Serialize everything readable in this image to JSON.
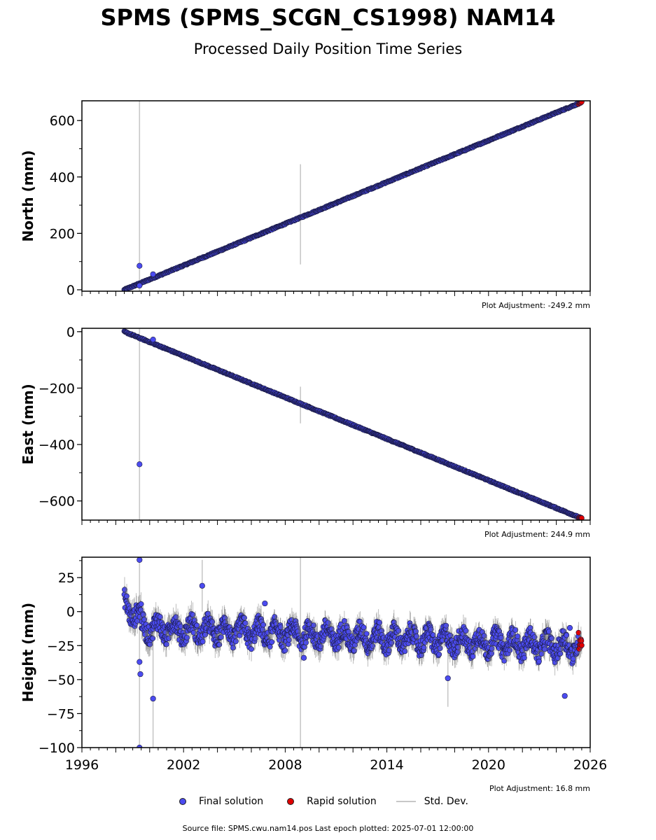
{
  "title": "SPMS (SPMS_SCGN_CS1998) NAM14",
  "subtitle": "Processed Daily Position Time Series",
  "legend": {
    "final": "Final solution",
    "rapid": "Rapid solution",
    "stddev": "Std. Dev."
  },
  "source_text": "Source file: SPMS.cwu.nam14.pos  Last epoch plotted: 2025-07-01 12:00:00",
  "colors": {
    "final": "#4b4bf0",
    "rapid": "#e00000",
    "stddev": "#c8c8c8",
    "outline": "#1a1a40"
  },
  "chart_data": [
    {
      "type": "scatter",
      "ylabel": "North (mm)",
      "ylim": [
        -5,
        670
      ],
      "yticks": [
        0,
        200,
        400,
        600
      ],
      "xlim": [
        1996,
        2026
      ],
      "adjustment": "Plot Adjustment: -249.2 mm",
      "trend": {
        "x0": 1998.5,
        "y0": 0,
        "x1": 2025.5,
        "y1": 665
      },
      "outliers": [
        {
          "x": 1999.4,
          "y": 85
        },
        {
          "x": 1999.4,
          "y": 15
        },
        {
          "x": 2000.2,
          "y": 55
        }
      ],
      "error_bars": [
        {
          "x": 1999.4,
          "ylo": -5,
          "yhi": 670
        },
        {
          "x": 2008.9,
          "ylo": 90,
          "yhi": 445
        }
      ]
    },
    {
      "type": "scatter",
      "ylabel": "East (mm)",
      "ylim": [
        -668,
        12
      ],
      "yticks": [
        0,
        -200,
        -400,
        -600
      ],
      "xlim": [
        1996,
        2026
      ],
      "adjustment": "Plot Adjustment: 244.9 mm",
      "trend": {
        "x0": 1998.5,
        "y0": 0,
        "x1": 2025.5,
        "y1": -662
      },
      "outliers": [
        {
          "x": 1999.4,
          "y": -470
        },
        {
          "x": 2000.2,
          "y": -28
        }
      ],
      "error_bars": [
        {
          "x": 1999.4,
          "ylo": -668,
          "yhi": 12
        },
        {
          "x": 2008.9,
          "ylo": -325,
          "yhi": -195
        }
      ]
    },
    {
      "type": "scatter",
      "ylabel": "Height (mm)",
      "ylim": [
        -100,
        40
      ],
      "yticks": [
        25,
        0,
        -25,
        -50,
        -75,
        -100
      ],
      "xlim": [
        1996,
        2026
      ],
      "xticks": [
        "1996",
        "2002",
        "2008",
        "2014",
        "2020",
        "2026"
      ],
      "adjustment": "Plot Adjustment: 16.8 mm",
      "outliers": [
        {
          "x": 1999.4,
          "y": 38
        },
        {
          "x": 1999.4,
          "y": -37
        },
        {
          "x": 1999.45,
          "y": -46
        },
        {
          "x": 1999.4,
          "y": -100
        },
        {
          "x": 2000.2,
          "y": -64
        },
        {
          "x": 2003.1,
          "y": 19
        },
        {
          "x": 2006.8,
          "y": 6
        },
        {
          "x": 2009.1,
          "y": -34
        },
        {
          "x": 2017.6,
          "y": -49
        },
        {
          "x": 2024.5,
          "y": -62
        },
        {
          "x": 2024.8,
          "y": -12
        }
      ],
      "error_bars": [
        {
          "x": 1999.4,
          "ylo": -100,
          "yhi": 40
        },
        {
          "x": 2000.2,
          "ylo": -100,
          "yhi": -20
        },
        {
          "x": 2008.9,
          "ylo": -100,
          "yhi": 40
        },
        {
          "x": 2003.1,
          "ylo": 0,
          "yhi": 38
        },
        {
          "x": 2017.6,
          "ylo": -70,
          "yhi": -30
        }
      ]
    }
  ]
}
